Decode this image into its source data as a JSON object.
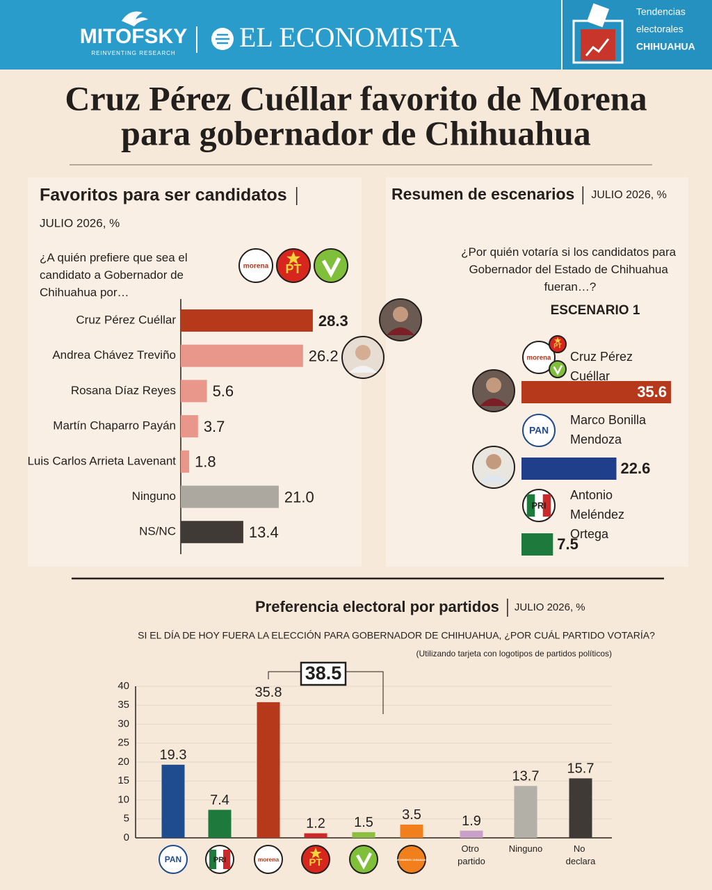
{
  "header": {
    "brand1": "MITOFSKY",
    "brand1_tagline": "REINVENTING RESEARCH",
    "brand2": "EL ECONOMISTA",
    "badge_line1": "Tendencias",
    "badge_line2": "electorales",
    "badge_line3": "CHIHUAHUA"
  },
  "title_line1": "Cruz Pérez Cuéllar favorito de Morena",
  "title_line2": "para gobernador de Chihuahua",
  "chart_data": [
    {
      "type": "hbar",
      "title": "Favoritos para ser candidatos",
      "subtitle": "JULIO 2026, %",
      "question": "¿A quién prefiere que sea el candidato a Gobernador de Chihuahua por…",
      "party_logos": [
        "morena",
        "PT",
        null
      ],
      "categories": [
        "Cruz Pérez Cuéllar",
        "Andrea Chávez Treviño",
        "Rosana Díaz Reyes",
        "Martín Chaparro Payán",
        "Luis Carlos Arrieta Lavenant",
        "Ninguno",
        "NS/NC"
      ],
      "values": [
        28.3,
        26.2,
        5.6,
        3.7,
        1.8,
        21.0,
        13.4
      ],
      "value_labels": [
        "28.3",
        "26.2",
        "5.6",
        "3.7",
        "1.8",
        "21.0",
        "13.4"
      ],
      "colors": [
        "#b5391a",
        "#e9968b",
        "#e9968b",
        "#e9968b",
        "#e9968b",
        "#aca79f",
        "#3f3a35"
      ]
    },
    {
      "type": "scenario",
      "title": "Resumen de escenarios",
      "subtitle": "JULIO 2026, %",
      "question": "¿Por quién votaría si los candidatos para Gobernador del Estado de Chihuahua fueran…?",
      "scenario": "ESCENARIO 1",
      "party_logos": [
        [
          "morena",
          "PT",
          null
        ],
        [
          "PAN"
        ],
        [
          "PRI"
        ]
      ],
      "categories": [
        "Cruz Pérez Cuéllar",
        "Marco Bonilla Mendoza",
        "Antonio Meléndez Ortega"
      ],
      "values": [
        35.6,
        22.6,
        7.5
      ],
      "colors": [
        "#b5391a",
        "#1f3f8a",
        "#1e7a3c"
      ]
    },
    {
      "type": "bar",
      "title": "Preferencia electoral por partidos",
      "subtitle": "JULIO 2026, %",
      "question": "SI EL DÍA DE HOY FUERA LA ELECCIÓN PARA GOBERNADOR DE CHIHUAHUA, ¿POR CUÁL PARTIDO VOTARÍA?",
      "note": "(Utilizando tarjeta con logotipos de partidos políticos)",
      "annotation": "38.5",
      "categories": [
        "PAN",
        "PRI",
        "morena",
        "PT",
        null,
        "MOVIMIENTO CIUDADANO",
        "Otro partido",
        "Ninguno",
        "No declara"
      ],
      "values": [
        19.3,
        7.4,
        35.8,
        1.2,
        1.5,
        3.5,
        1.9,
        13.7,
        15.7
      ],
      "colors": [
        "#1f4b8f",
        "#1e7a3c",
        "#b5391a",
        "#cc2a2a",
        "#8cbf3f",
        "#f07f1c",
        "#c9a0c8",
        "#b3b0a8",
        "#3f3a35"
      ],
      "ylim": [
        0,
        40
      ],
      "yticks": [
        0,
        5,
        10,
        15,
        20,
        25,
        30,
        35,
        40
      ],
      "grid": true
    }
  ]
}
